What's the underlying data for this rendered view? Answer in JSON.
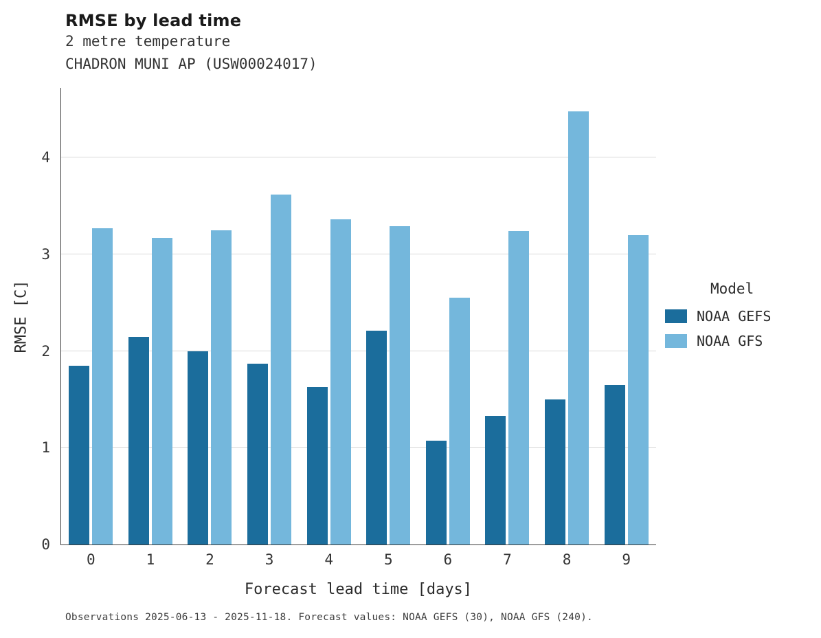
{
  "header": {
    "title": "RMSE by lead time",
    "subtitle1": "2 metre temperature",
    "subtitle2": "CHADRON MUNI AP (USW00024017)"
  },
  "legend": {
    "title": "Model",
    "entries": [
      {
        "label": "NOAA GEFS",
        "color": "#1b6d9c"
      },
      {
        "label": "NOAA GFS",
        "color": "#74b7dc"
      }
    ]
  },
  "footer": {
    "text": "Observations 2025-06-13 - 2025-11-18. Forecast values: NOAA GEFS (30), NOAA GFS (240)."
  },
  "chart_data": {
    "type": "bar",
    "title": "RMSE by lead time",
    "subtitle": "2 metre temperature — CHADRON MUNI AP (USW00024017)",
    "categories": [
      "0",
      "1",
      "2",
      "3",
      "4",
      "5",
      "6",
      "7",
      "8",
      "9"
    ],
    "series": [
      {
        "name": "NOAA GEFS",
        "color": "#1b6d9c",
        "values": [
          1.85,
          2.15,
          2.0,
          1.87,
          1.63,
          2.21,
          1.07,
          1.33,
          1.5,
          1.65
        ]
      },
      {
        "name": "NOAA GFS",
        "color": "#74b7dc",
        "values": [
          3.27,
          3.17,
          3.25,
          3.62,
          3.36,
          3.29,
          2.55,
          3.24,
          4.48,
          3.2
        ]
      }
    ],
    "xlabel": "Forecast lead time [days]",
    "ylabel": "RMSE [C]",
    "yticks": [
      0,
      1,
      2,
      3,
      4
    ],
    "ylim": [
      0,
      4.72
    ],
    "grid": true,
    "legend_title": "Model",
    "legend_position": "right"
  }
}
